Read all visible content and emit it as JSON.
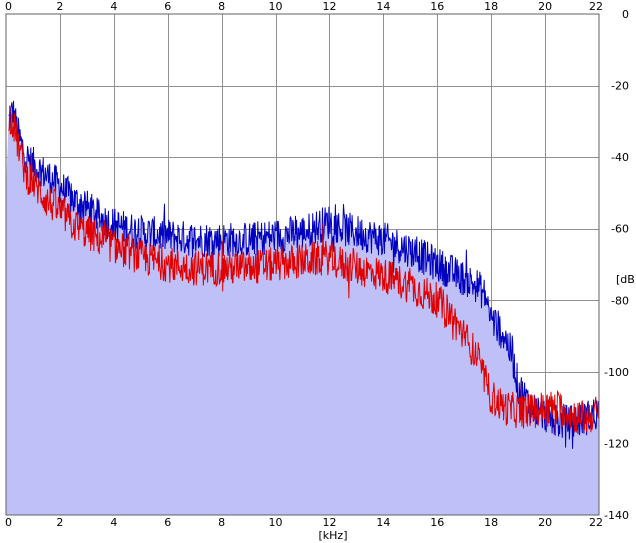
{
  "chart_data": {
    "type": "area",
    "xlabel": "[kHz]",
    "ylabel": "[dB]",
    "xlim": [
      0,
      22
    ],
    "ylim": [
      -140,
      0
    ],
    "x_ticks": [
      0,
      2,
      4,
      6,
      8,
      10,
      12,
      14,
      16,
      18,
      20,
      22
    ],
    "y_ticks": [
      0,
      -20,
      -40,
      -60,
      -80,
      -100,
      -120,
      -140
    ],
    "grid": true,
    "legend": "none",
    "colors": {
      "fill": "#c0c0f8",
      "series_1": "#0000c0",
      "series_2": "#e00000",
      "grid": "#909090",
      "frame": "#606060"
    },
    "series": [
      {
        "color": "#0000c0",
        "x": [
          0.1,
          0.25,
          0.5,
          0.75,
          1,
          1.5,
          2,
          2.5,
          3,
          3.5,
          4,
          5,
          6,
          7,
          8,
          9,
          10,
          11,
          12,
          12.5,
          13,
          14,
          15,
          16,
          16.5,
          17,
          17.5,
          17.8,
          18,
          18.5,
          18.8,
          19,
          19.5,
          20,
          20.5,
          21,
          21.5,
          22
        ],
        "y": [
          -30,
          -27,
          -35,
          -40,
          -42,
          -45,
          -48,
          -52,
          -54,
          -57,
          -59,
          -61,
          -62,
          -63,
          -63,
          -63,
          -62,
          -61,
          -58,
          -60,
          -61,
          -63,
          -66,
          -70,
          -72,
          -74,
          -76,
          -79,
          -85,
          -90,
          -96,
          -104,
          -110,
          -112,
          -114,
          -114,
          -113,
          -111
        ]
      },
      {
        "color": "#e00000",
        "x": [
          0.1,
          0.25,
          0.5,
          0.75,
          1,
          1.5,
          2,
          2.5,
          3,
          3.5,
          4,
          5,
          6,
          7,
          8,
          9,
          10,
          11,
          12,
          12.5,
          13,
          14,
          15,
          16,
          16.5,
          17,
          17.5,
          17.8,
          18,
          18.5,
          19,
          19.5,
          20,
          20.5,
          21,
          21.5,
          22
        ],
        "y": [
          -28,
          -30,
          -38,
          -45,
          -47,
          -52,
          -55,
          -59,
          -61,
          -63,
          -65,
          -68,
          -70,
          -71,
          -71,
          -71,
          -70,
          -69,
          -68,
          -70,
          -71,
          -73,
          -76,
          -80,
          -84,
          -90,
          -96,
          -103,
          -107,
          -110,
          -111,
          -111,
          -110,
          -110,
          -112,
          -113,
          -111
        ]
      }
    ]
  }
}
